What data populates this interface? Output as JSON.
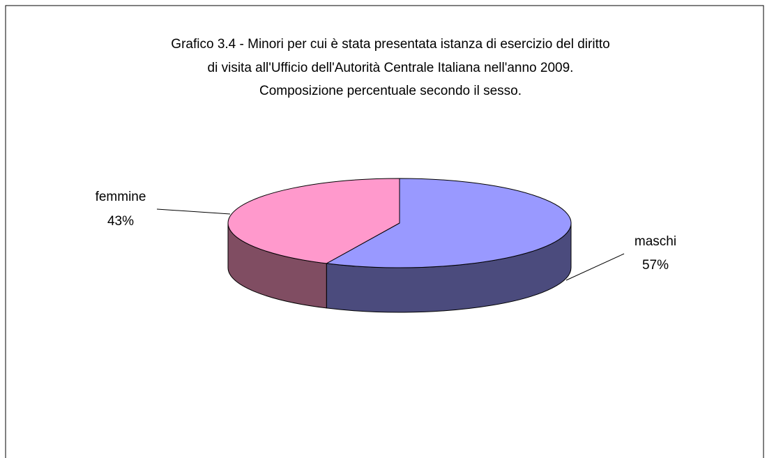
{
  "chart_data": {
    "type": "pie3d",
    "title": [
      "Grafico 3.4 - Minori per cui è stata presentata istanza di esercizio del diritto",
      "di visita all'Ufficio dell'Autorità Centrale Italiana nell'anno 2009.",
      "Composizione percentuale secondo il sesso."
    ],
    "categories": [
      "maschi",
      "femmine"
    ],
    "values": [
      57,
      43
    ],
    "value_labels": [
      "57%",
      "43%"
    ],
    "colors": [
      "#9999ff",
      "#ff99cc"
    ],
    "side_colors": [
      "#4b4b7d",
      "#804d62"
    ]
  }
}
